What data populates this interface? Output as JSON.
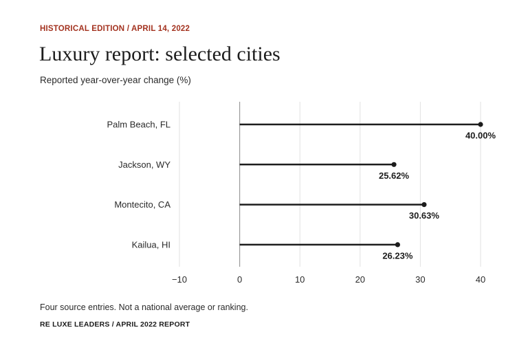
{
  "header": {
    "eyebrow": "HISTORICAL EDITION / APRIL 14, 2022",
    "title": "Luxury report: selected cities",
    "subtitle": "Reported year-over-year change (%)"
  },
  "footer": {
    "note": "Four source entries. Not a national average or ranking.",
    "source": "RE LUXE LEADERS / APRIL 2022 REPORT"
  },
  "colors": {
    "eyebrow": "#a3321f",
    "bar": "#1c1c1c",
    "grid": "#e2e2e2",
    "zero_axis": "#9a9a9a"
  },
  "chart_data": {
    "type": "bar",
    "orientation": "horizontal",
    "style": "lollipop",
    "categories": [
      "Palm Beach, FL",
      "Jackson, WY",
      "Montecito, CA",
      "Kailua, HI"
    ],
    "values": [
      40.0,
      25.62,
      30.63,
      26.23
    ],
    "value_labels": [
      "40.00%",
      "25.62%",
      "30.63%",
      "26.23%"
    ],
    "xlim": [
      -10,
      40
    ],
    "xticks": [
      -10,
      0,
      10,
      20,
      30,
      40
    ],
    "xtick_labels": [
      "−10",
      "0",
      "10",
      "20",
      "30",
      "40"
    ],
    "grid": "vertical",
    "legend": "none"
  }
}
